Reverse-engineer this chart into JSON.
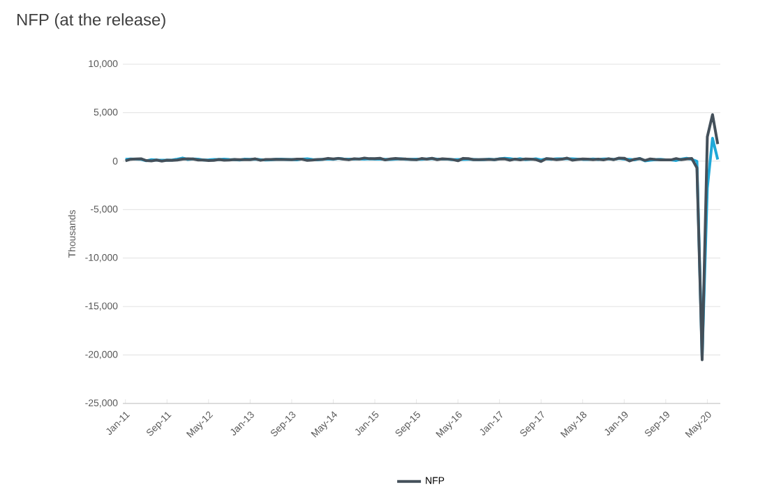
{
  "chart_data": {
    "type": "line",
    "title": "NFP (at the release)",
    "ylabel": "Thousands",
    "categories": [
      "Jan-11",
      null,
      null,
      null,
      null,
      null,
      null,
      null,
      "Sep-11",
      null,
      null,
      null,
      null,
      null,
      null,
      null,
      "May-12",
      null,
      null,
      null,
      null,
      null,
      null,
      null,
      "Jan-13",
      null,
      null,
      null,
      null,
      null,
      null,
      null,
      "Sep-13",
      null,
      null,
      null,
      null,
      null,
      null,
      null,
      "May-14",
      null,
      null,
      null,
      null,
      null,
      null,
      null,
      "Jan-15",
      null,
      null,
      null,
      null,
      null,
      null,
      null,
      "Sep-15",
      null,
      null,
      null,
      null,
      null,
      null,
      null,
      "May-16",
      null,
      null,
      null,
      null,
      null,
      null,
      null,
      "Jan-17",
      null,
      null,
      null,
      null,
      null,
      null,
      null,
      "Sep-17",
      null,
      null,
      null,
      null,
      null,
      null,
      null,
      "May-18",
      null,
      null,
      null,
      null,
      null,
      null,
      null,
      "Jan-19",
      null,
      null,
      null,
      null,
      null,
      null,
      null,
      "Sep-19",
      null,
      null,
      null,
      null,
      null,
      null,
      null,
      "May-20",
      null,
      null
    ],
    "series": [
      {
        "color": "#1fa8d8",
        "values": [
          187,
          217,
          201,
          179,
          38,
          157,
          114,
          91,
          91,
          110,
          206,
          325,
          170,
          216,
          209,
          119,
          133,
          176,
          163,
          201,
          162,
          158,
          118,
          215,
          192,
          198,
          158,
          119,
          135,
          188,
          200,
          176,
          166,
          130,
          215,
          238,
          175,
          139,
          191,
          220,
          179,
          281,
          218,
          204,
          213,
          230,
          208,
          241,
          213,
          212,
          189,
          169,
          201,
          237,
          185,
          190,
          200,
          182,
          217,
          257,
          205,
          214,
          200,
          156,
          173,
          172,
          179,
          177,
          154,
          147,
          216,
          153,
          246,
          298,
          263,
          177,
          253,
          158,
          178,
          237,
          135,
          235,
          190,
          250,
          234,
          235,
          241,
          204,
          178,
          177,
          219,
          163,
          230,
          227,
          179,
          271,
          213,
          183,
          129,
          275,
          27,
          102,
          156,
          195,
          135,
          125,
          67,
          202,
          291,
          183,
          -27,
          -20236,
          -2760,
          2369,
          167
        ]
      },
      {
        "name": "NFP",
        "color": "#44505a",
        "values": [
          36,
          192,
          216,
          244,
          54,
          18,
          117,
          0,
          103,
          80,
          120,
          200,
          243,
          227,
          120,
          115,
          69,
          80,
          163,
          96,
          114,
          171,
          146,
          155,
          157,
          236,
          88,
          165,
          175,
          195,
          162,
          169,
          148,
          204,
          203,
          74,
          113,
          175,
          192,
          288,
          217,
          288,
          209,
          142,
          248,
          214,
          321,
          252,
          257,
          295,
          126,
          223,
          280,
          223,
          215,
          173,
          142,
          271,
          211,
          292,
          151,
          242,
          215,
          160,
          38,
          287,
          255,
          151,
          156,
          161,
          178,
          156,
          227,
          235,
          98,
          211,
          138,
          222,
          209,
          156,
          -33,
          261,
          228,
          148,
          200,
          313,
          103,
          164,
          223,
          213,
          157,
          201,
          134,
          250,
          155,
          312,
          304,
          20,
          196,
          263,
          75,
          224,
          164,
          130,
          136,
          128,
          266,
          145,
          225,
          273,
          -701,
          -20500,
          2509,
          4800,
          1763
        ]
      }
    ],
    "ylim": [
      -25000,
      10000
    ],
    "yticks": [
      {
        "value": -25000,
        "label": "-25,000"
      },
      {
        "value": -20000,
        "label": "-20,000"
      },
      {
        "value": -15000,
        "label": "-15,000"
      },
      {
        "value": -10000,
        "label": "-10,000"
      },
      {
        "value": -5000,
        "label": "-5,000"
      },
      0,
      {
        "value": 5000,
        "label": "5,000"
      },
      {
        "value": 10000,
        "label": "10,000"
      }
    ],
    "grid": "y",
    "legend": "bottom",
    "marker": "none",
    "line_style": "solid"
  }
}
